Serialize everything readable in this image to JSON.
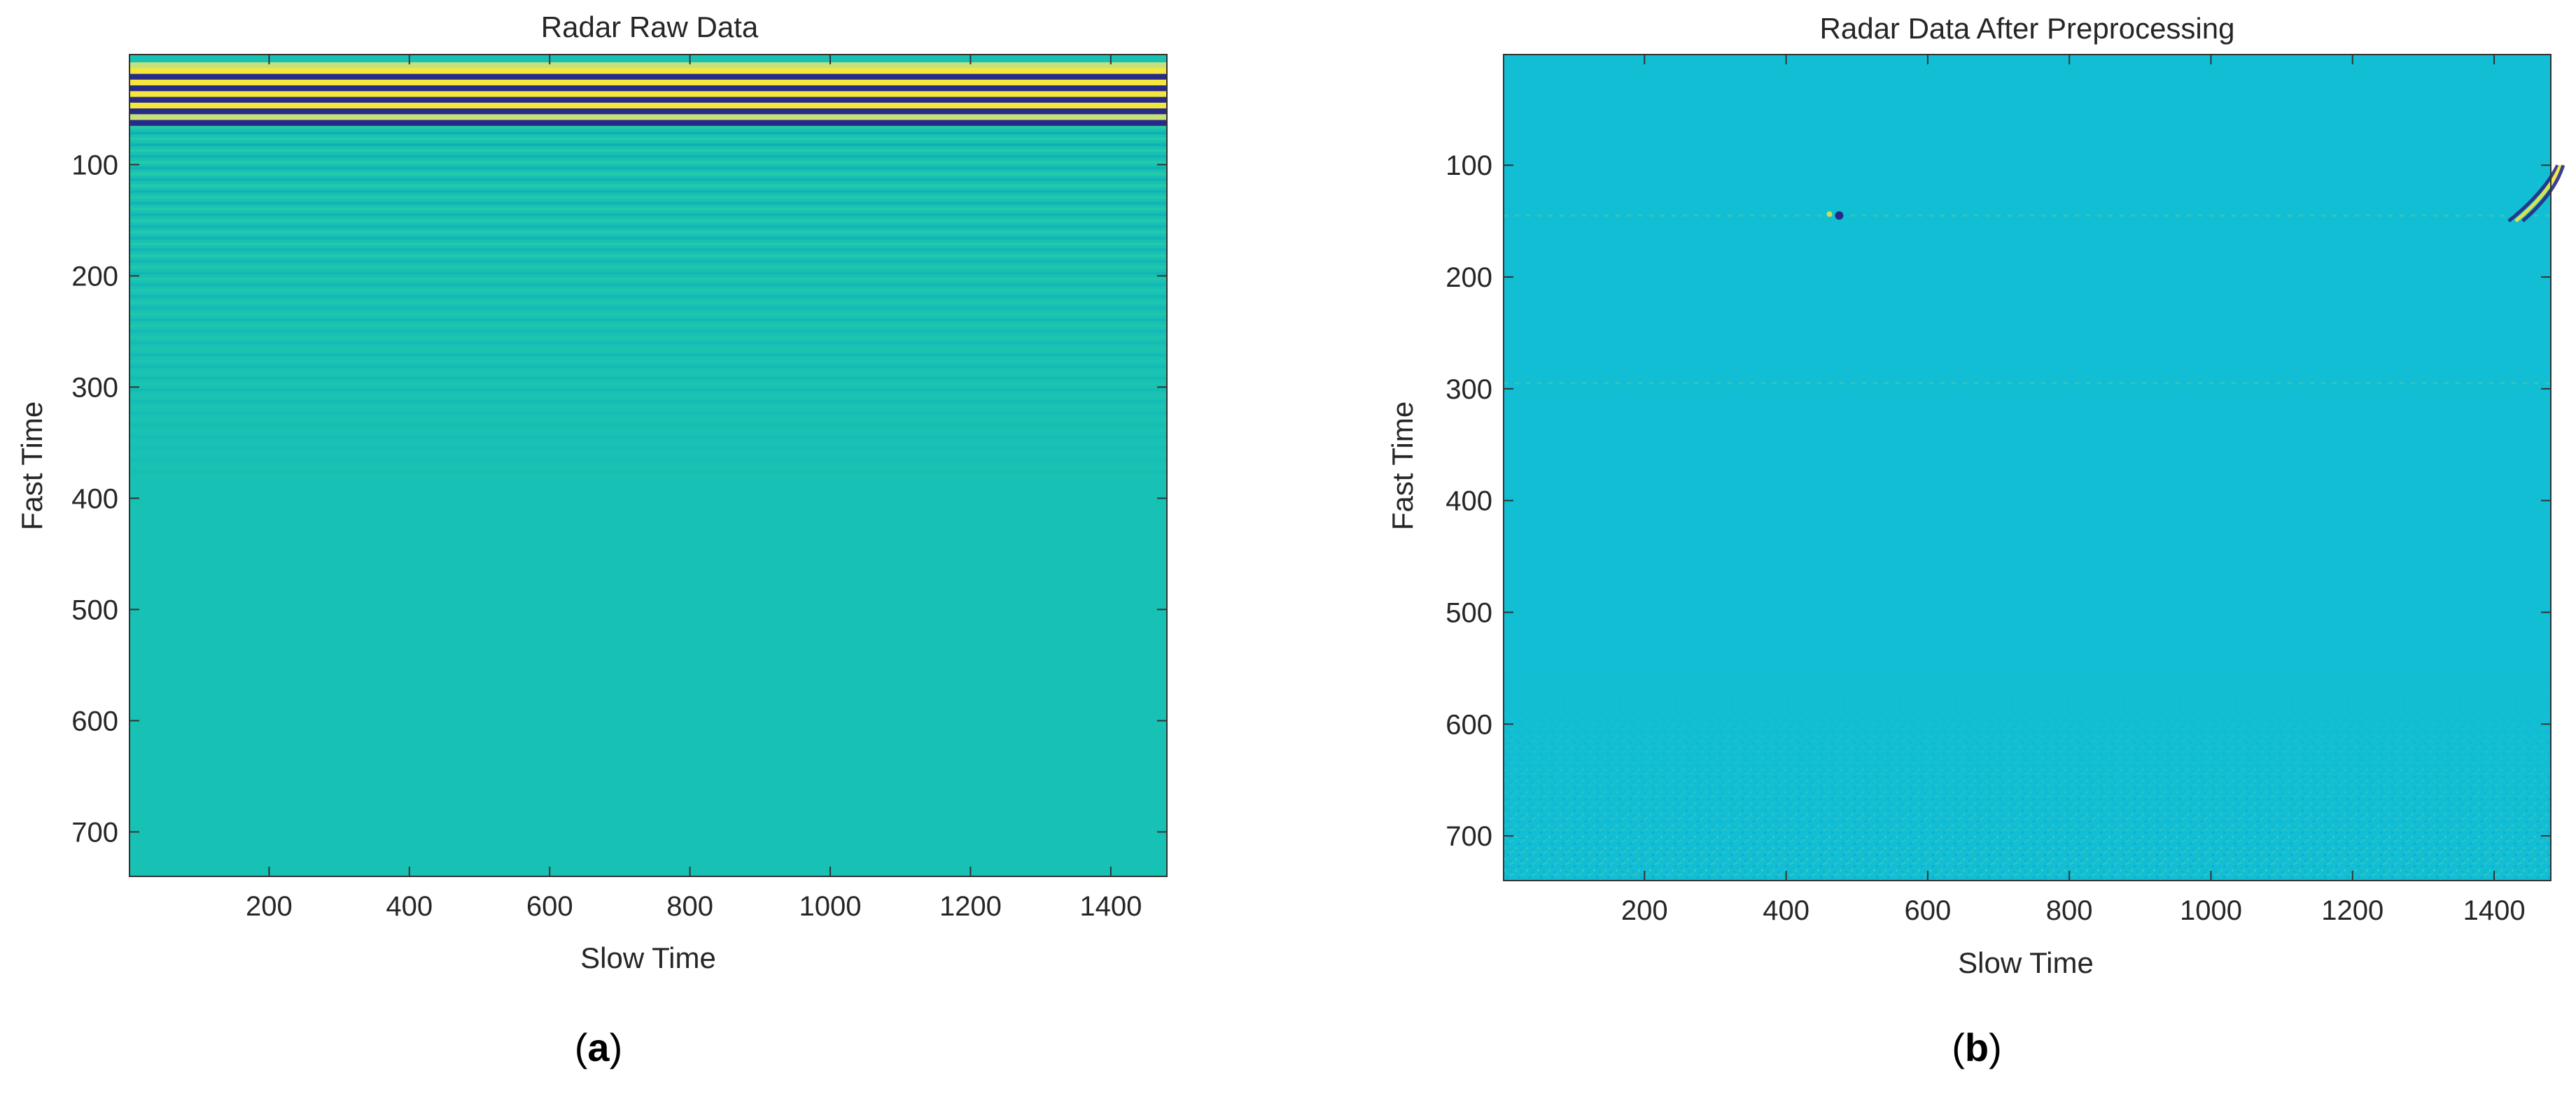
{
  "figure": {
    "panels": [
      {
        "label": "a"
      },
      {
        "label": "b"
      }
    ]
  },
  "chart_data": [
    {
      "type": "heatmap",
      "title": "Radar Raw Data",
      "xlabel": "Slow Time",
      "ylabel": "Fast Time",
      "xlim": [
        1,
        1480
      ],
      "ylim": [
        1,
        740
      ],
      "y_reversed": true,
      "xticks": [
        200,
        400,
        600,
        800,
        1000,
        1200,
        1400
      ],
      "yticks": [
        100,
        200,
        300,
        400,
        500,
        600,
        700
      ],
      "colormap": "parula",
      "colors": {
        "background": "#17c1b4",
        "yellow": "#f4e63c",
        "navy": "#272a86",
        "light_green": "#c6e07a",
        "teal_dark": "#10a8b0"
      },
      "features": [
        {
          "description": "strong alternating yellow/navy horizontal bands",
          "fast_time_range": [
            8,
            65
          ]
        },
        {
          "description": "weaker horizontal banding fading out",
          "fast_time_range": [
            65,
            380
          ]
        },
        {
          "description": "uniform teal background",
          "fast_time_range": [
            380,
            740
          ]
        }
      ]
    },
    {
      "type": "heatmap",
      "title": "Radar Data After Preprocessing",
      "xlabel": "Slow Time",
      "ylabel": "Fast Time",
      "xlim": [
        1,
        1480
      ],
      "ylim": [
        1,
        740
      ],
      "y_reversed": true,
      "xticks": [
        200,
        400,
        600,
        800,
        1000,
        1200,
        1400
      ],
      "yticks": [
        100,
        200,
        300,
        400,
        500,
        600,
        700
      ],
      "colormap": "parula",
      "colors": {
        "background": "#11bed3",
        "noise_light": "#3fc7b6",
        "noise_dark": "#159ed0",
        "spot": "#272a86",
        "spot_light": "#f4e63c"
      },
      "features": [
        {
          "description": "faint horizontal line",
          "fast_time": 145
        },
        {
          "description": "faint horizontal line",
          "fast_time": 295
        },
        {
          "description": "small spot",
          "slow_time": 475,
          "fast_time": 145
        },
        {
          "description": "curved streaks near right edge",
          "slow_time": 1460,
          "fast_time_range": [
            100,
            150
          ]
        },
        {
          "description": "speckle noise increasing toward bottom",
          "fast_time_range": [
            520,
            740
          ]
        }
      ]
    }
  ]
}
